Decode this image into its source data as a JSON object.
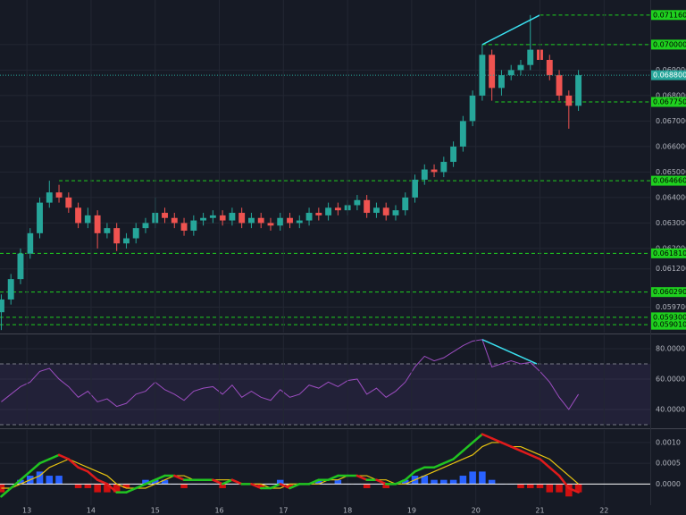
{
  "chart_data": [
    {
      "type": "candlestick",
      "grid": true,
      "up_color": "#26a69a",
      "down_color": "#ef5350",
      "x": [
        12.6,
        12.75,
        12.9,
        13.05,
        13.2,
        13.35,
        13.5,
        13.65,
        13.8,
        13.95,
        14.1,
        14.25,
        14.4,
        14.55,
        14.7,
        14.85,
        15.0,
        15.15,
        15.3,
        15.45,
        15.6,
        15.75,
        15.9,
        16.05,
        16.2,
        16.35,
        16.5,
        16.65,
        16.8,
        16.95,
        17.1,
        17.25,
        17.4,
        17.55,
        17.7,
        17.85,
        18.0,
        18.15,
        18.3,
        18.45,
        18.6,
        18.75,
        18.9,
        19.05,
        19.2,
        19.35,
        19.5,
        19.65,
        19.8,
        19.95,
        20.1,
        20.25,
        20.4,
        20.55,
        20.7,
        20.85,
        21.0,
        21.15,
        21.3,
        21.45,
        21.6
      ],
      "open": [
        0.0595,
        0.06,
        0.0608,
        0.0618,
        0.0626,
        0.0638,
        0.0642,
        0.064,
        0.0636,
        0.063,
        0.0633,
        0.0626,
        0.0628,
        0.0622,
        0.0624,
        0.0628,
        0.063,
        0.0634,
        0.0632,
        0.063,
        0.0627,
        0.0631,
        0.0632,
        0.0633,
        0.0631,
        0.0634,
        0.063,
        0.0632,
        0.063,
        0.0629,
        0.0632,
        0.063,
        0.0631,
        0.0634,
        0.0633,
        0.0636,
        0.0635,
        0.0637,
        0.0639,
        0.0634,
        0.0636,
        0.0633,
        0.0635,
        0.064,
        0.0647,
        0.0651,
        0.065,
        0.0654,
        0.066,
        0.067,
        0.068,
        0.0696,
        0.0683,
        0.0688,
        0.069,
        0.0692,
        0.0698,
        0.0694,
        0.0688,
        0.068,
        0.0676
      ],
      "high": [
        0.0602,
        0.061,
        0.062,
        0.0628,
        0.064,
        0.06466,
        0.0645,
        0.0642,
        0.0638,
        0.0636,
        0.0635,
        0.063,
        0.063,
        0.0626,
        0.063,
        0.0632,
        0.064,
        0.0636,
        0.0634,
        0.0632,
        0.0633,
        0.0634,
        0.0635,
        0.0635,
        0.0636,
        0.0636,
        0.0634,
        0.0634,
        0.0632,
        0.0634,
        0.0634,
        0.0633,
        0.0636,
        0.0636,
        0.0638,
        0.0638,
        0.0639,
        0.0641,
        0.0641,
        0.0638,
        0.0638,
        0.0637,
        0.0642,
        0.0649,
        0.0653,
        0.0653,
        0.0656,
        0.0662,
        0.0672,
        0.0682,
        0.07,
        0.0698,
        0.069,
        0.0692,
        0.0694,
        0.07116,
        0.07,
        0.0696,
        0.069,
        0.0682,
        0.069
      ],
      "low": [
        0.0588,
        0.0598,
        0.0606,
        0.0616,
        0.0624,
        0.0636,
        0.0638,
        0.0634,
        0.0628,
        0.0628,
        0.062,
        0.0624,
        0.0619,
        0.062,
        0.0622,
        0.0626,
        0.0628,
        0.063,
        0.0628,
        0.0625,
        0.0625,
        0.0629,
        0.063,
        0.0629,
        0.0629,
        0.0628,
        0.0628,
        0.0628,
        0.0627,
        0.0627,
        0.0628,
        0.0628,
        0.0629,
        0.0631,
        0.0631,
        0.0633,
        0.0633,
        0.0635,
        0.0632,
        0.0632,
        0.0631,
        0.0631,
        0.0633,
        0.0638,
        0.0645,
        0.0648,
        0.0648,
        0.0652,
        0.0658,
        0.0668,
        0.0678,
        0.0678,
        0.068,
        0.0686,
        0.0688,
        0.069,
        0.069,
        0.0686,
        0.0678,
        0.0667,
        0.0674
      ],
      "close": [
        0.06,
        0.0608,
        0.0618,
        0.0626,
        0.0638,
        0.0642,
        0.064,
        0.0636,
        0.063,
        0.0633,
        0.0626,
        0.0628,
        0.0622,
        0.0624,
        0.0628,
        0.063,
        0.0634,
        0.0632,
        0.063,
        0.0627,
        0.0631,
        0.0632,
        0.0633,
        0.0631,
        0.0634,
        0.063,
        0.0632,
        0.063,
        0.0629,
        0.0632,
        0.063,
        0.0631,
        0.0634,
        0.0633,
        0.0636,
        0.0635,
        0.0637,
        0.0639,
        0.0634,
        0.0636,
        0.0633,
        0.0635,
        0.064,
        0.0647,
        0.0651,
        0.065,
        0.0654,
        0.066,
        0.067,
        0.068,
        0.0696,
        0.0683,
        0.0688,
        0.069,
        0.0692,
        0.0698,
        0.0694,
        0.0688,
        0.068,
        0.0676,
        0.0688
      ],
      "xlim": [
        12.58,
        22.72
      ],
      "ylim": [
        0.0587,
        0.07175
      ],
      "yticks": [
        {
          "value": 0.07,
          "label": "0.070000"
        },
        {
          "value": 0.069,
          "label": "0.069000"
        },
        {
          "value": 0.068,
          "label": "0.068000"
        },
        {
          "value": 0.067,
          "label": "0.067000"
        },
        {
          "value": 0.066,
          "label": "0.066000"
        },
        {
          "value": 0.065,
          "label": "0.065000"
        },
        {
          "value": 0.064,
          "label": "0.064000"
        },
        {
          "value": 0.063,
          "label": "0.063000"
        },
        {
          "value": 0.062,
          "label": "0.062000"
        },
        {
          "value": 0.0612,
          "label": "0.061200"
        },
        {
          "value": 0.0597,
          "label": "0.059700"
        }
      ],
      "levels": [
        {
          "value": 0.07116,
          "label": "0.071160",
          "from": 21.0
        },
        {
          "value": 0.07,
          "label": "0.070000",
          "from": 20.1
        },
        {
          "value": 0.06775,
          "label": "0.067750",
          "from": 20.3
        },
        {
          "value": 0.06466,
          "label": "0.064660",
          "from": 13.5
        },
        {
          "value": 0.06181,
          "label": "0.061810",
          "from": 12.58
        },
        {
          "value": 0.06029,
          "label": "0.060290",
          "from": 12.58
        },
        {
          "value": 0.0593,
          "label": "0.059300",
          "from": 12.58
        },
        {
          "value": 0.05901,
          "label": "0.059010",
          "from": 12.58
        }
      ],
      "level_color": "#1fd11f",
      "current_price": {
        "value": 0.0688,
        "label": "0.068800",
        "color": "#26a69a"
      },
      "trendline": {
        "x": [
          20.1,
          21.0
        ],
        "y": [
          0.07,
          0.07116
        ],
        "color": "#3ae0f0"
      }
    },
    {
      "type": "line",
      "name": "RSI",
      "color": "#9c4dc0",
      "grid": true,
      "x": [
        12.6,
        12.75,
        12.9,
        13.05,
        13.2,
        13.35,
        13.5,
        13.65,
        13.8,
        13.95,
        14.1,
        14.25,
        14.4,
        14.55,
        14.7,
        14.85,
        15.0,
        15.15,
        15.3,
        15.45,
        15.6,
        15.75,
        15.9,
        16.05,
        16.2,
        16.35,
        16.5,
        16.65,
        16.8,
        16.95,
        17.1,
        17.25,
        17.4,
        17.55,
        17.7,
        17.85,
        18.0,
        18.15,
        18.3,
        18.45,
        18.6,
        18.75,
        18.9,
        19.05,
        19.2,
        19.35,
        19.5,
        19.65,
        19.8,
        19.95,
        20.1,
        20.25,
        20.4,
        20.55,
        20.7,
        20.85,
        21.0,
        21.15,
        21.3,
        21.45,
        21.6
      ],
      "values": [
        45,
        50,
        55,
        58,
        65,
        67,
        60,
        55,
        48,
        52,
        45,
        47,
        42,
        44,
        50,
        52,
        58,
        53,
        50,
        46,
        52,
        54,
        55,
        50,
        56,
        48,
        52,
        48,
        46,
        53,
        48,
        50,
        56,
        54,
        58,
        55,
        59,
        60,
        50,
        54,
        48,
        52,
        58,
        68,
        75,
        72,
        74,
        78,
        82,
        85,
        86,
        68,
        70,
        72,
        70,
        71,
        65,
        58,
        48,
        40,
        50
      ],
      "xlim": [
        12.58,
        22.72
      ],
      "ylim": [
        28.2,
        88.8
      ],
      "yticks": [
        {
          "value": 80,
          "label": "80.0000"
        },
        {
          "value": 60,
          "label": "60.0000"
        },
        {
          "value": 40,
          "label": "40.0000"
        }
      ],
      "bands": [
        70,
        30
      ],
      "trendline": {
        "x": [
          20.1,
          20.95
        ],
        "y": [
          86,
          70
        ],
        "color": "#3ae0f0"
      }
    },
    {
      "type": "macd",
      "grid": true,
      "up_color": "#21c421",
      "down_color": "#e01b1b",
      "signal_color": "#e8c410",
      "hist_up_color": "#2962ff",
      "hist_down_color": "#d01010",
      "x": [
        12.6,
        12.75,
        12.9,
        13.05,
        13.2,
        13.35,
        13.5,
        13.65,
        13.8,
        13.95,
        14.1,
        14.25,
        14.4,
        14.55,
        14.7,
        14.85,
        15.0,
        15.15,
        15.3,
        15.45,
        15.6,
        15.75,
        15.9,
        16.05,
        16.2,
        16.35,
        16.5,
        16.65,
        16.8,
        16.95,
        17.1,
        17.25,
        17.4,
        17.55,
        17.7,
        17.85,
        18.0,
        18.15,
        18.3,
        18.45,
        18.6,
        18.75,
        18.9,
        19.05,
        19.2,
        19.35,
        19.5,
        19.65,
        19.8,
        19.95,
        20.1,
        20.25,
        20.4,
        20.55,
        20.7,
        20.85,
        21.0,
        21.15,
        21.3,
        21.45,
        21.6
      ],
      "macd": [
        -0.0003,
        -0.0001,
        0.0001,
        0.0003,
        0.0005,
        0.0006,
        0.0007,
        0.0006,
        0.0004,
        0.0003,
        0.0001,
        0.0,
        -0.0002,
        -0.0002,
        -0.0001,
        0.0,
        0.0001,
        0.0002,
        0.0002,
        0.0001,
        0.0001,
        0.0001,
        0.0001,
        0.0,
        0.0001,
        0.0,
        0.0,
        -0.0001,
        -0.0001,
        0.0,
        -0.0001,
        0.0,
        0.0,
        0.0001,
        0.0001,
        0.0002,
        0.0002,
        0.0002,
        0.0001,
        0.0001,
        0.0,
        0.0,
        0.0001,
        0.0003,
        0.0004,
        0.0004,
        0.0005,
        0.0006,
        0.0008,
        0.001,
        0.0012,
        0.0011,
        0.001,
        0.0009,
        0.0008,
        0.0007,
        0.0006,
        0.0004,
        0.0002,
        -0.0001,
        -0.0002
      ],
      "signal": [
        -0.0001,
        -0.0001,
        0.0,
        0.0001,
        0.0002,
        0.0004,
        0.0005,
        0.0006,
        0.0005,
        0.0004,
        0.0003,
        0.0002,
        0.0,
        -0.0001,
        -0.0001,
        -0.0001,
        0.0,
        0.0001,
        0.0002,
        0.0002,
        0.0001,
        0.0001,
        0.0001,
        0.0001,
        0.0001,
        0.0,
        0.0,
        0.0,
        -0.0001,
        -0.0001,
        0.0,
        0.0,
        0.0,
        0.0,
        0.0001,
        0.0001,
        0.0002,
        0.0002,
        0.0002,
        0.0001,
        0.0001,
        0.0,
        0.0,
        0.0001,
        0.0002,
        0.0003,
        0.0004,
        0.0005,
        0.0006,
        0.0007,
        0.0009,
        0.001,
        0.001,
        0.0009,
        0.0009,
        0.0008,
        0.0007,
        0.0006,
        0.0004,
        0.0002,
        0.0
      ],
      "histogram": [
        -0.0002,
        0.0,
        0.0001,
        0.0002,
        0.0003,
        0.0002,
        0.0002,
        0.0,
        -0.0001,
        -0.0001,
        -0.0002,
        -0.0002,
        -0.0002,
        -0.0001,
        0.0,
        0.0001,
        0.0001,
        0.0001,
        0.0,
        -0.0001,
        0.0,
        0.0,
        0.0,
        -0.0001,
        0.0,
        0.0,
        0.0,
        -0.0001,
        0.0,
        0.0001,
        -0.0001,
        0.0,
        0.0,
        0.0001,
        0.0,
        0.0001,
        0.0,
        0.0,
        -0.0001,
        0.0,
        -0.0001,
        0.0,
        0.0001,
        0.0002,
        0.0002,
        0.0001,
        0.0001,
        0.0001,
        0.0002,
        0.0003,
        0.0003,
        0.0001,
        0.0,
        0.0,
        -0.0001,
        -0.0001,
        -0.0001,
        -0.0002,
        -0.0002,
        -0.0003,
        -0.0002
      ],
      "xlim": [
        12.58,
        22.72
      ],
      "ylim": [
        -0.00051,
        0.0013
      ],
      "yticks": [
        {
          "value": 0.001,
          "label": "0.0010"
        },
        {
          "value": 0.0005,
          "label": "0.0005"
        },
        {
          "value": 0,
          "label": "0.0000"
        }
      ],
      "xticks": [
        13,
        14,
        15,
        16,
        17,
        18,
        19,
        20,
        21,
        22
      ]
    }
  ]
}
